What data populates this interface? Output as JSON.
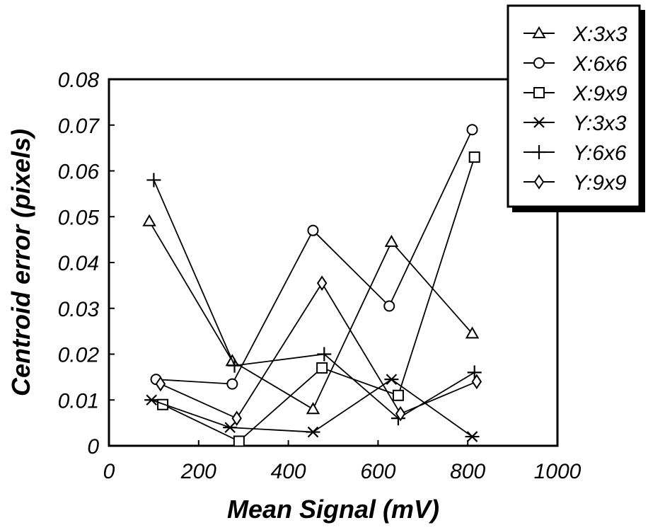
{
  "chart_data": {
    "type": "line",
    "title": "",
    "xlabel": "Mean Signal (mV)",
    "ylabel": "Centroid error (pixels)",
    "xlim": [
      0,
      1000
    ],
    "ylim": [
      0,
      0.08
    ],
    "xticks": [
      0,
      200,
      400,
      600,
      800,
      1000
    ],
    "yticks": [
      0,
      0.01,
      0.02,
      0.03,
      0.04,
      0.05,
      0.06,
      0.07,
      0.08
    ],
    "xtick_labels": [
      "0",
      "200",
      "400",
      "600",
      "800",
      "1000"
    ],
    "ytick_labels": [
      "0",
      "0.01",
      "0.02",
      "0.03",
      "0.04",
      "0.05",
      "0.06",
      "0.07",
      "0.08"
    ],
    "grid": false,
    "legend_position": "top-right",
    "series": [
      {
        "name": "X:3x3",
        "marker": "triangle",
        "x": [
          90,
          275,
          455,
          630,
          810
        ],
        "y": [
          0.049,
          0.0185,
          0.008,
          0.0445,
          0.0245
        ]
      },
      {
        "name": "X:6x6",
        "marker": "circle",
        "x": [
          105,
          275,
          455,
          625,
          810
        ],
        "y": [
          0.0145,
          0.0135,
          0.047,
          0.0305,
          0.069
        ]
      },
      {
        "name": "X:9x9",
        "marker": "square",
        "x": [
          120,
          290,
          475,
          645,
          815
        ],
        "y": [
          0.009,
          0.001,
          0.017,
          0.011,
          0.063
        ]
      },
      {
        "name": "Y:3x3",
        "marker": "asterisk",
        "x": [
          95,
          270,
          455,
          630,
          810
        ],
        "y": [
          0.01,
          0.004,
          0.003,
          0.0145,
          0.002
        ]
      },
      {
        "name": "Y:6x6",
        "marker": "plus",
        "x": [
          100,
          280,
          480,
          645,
          815
        ],
        "y": [
          0.058,
          0.0175,
          0.02,
          0.006,
          0.016
        ]
      },
      {
        "name": "Y:9x9",
        "marker": "diamond",
        "x": [
          115,
          285,
          475,
          650,
          820
        ],
        "y": [
          0.0135,
          0.006,
          0.0355,
          0.007,
          0.014
        ]
      }
    ]
  }
}
